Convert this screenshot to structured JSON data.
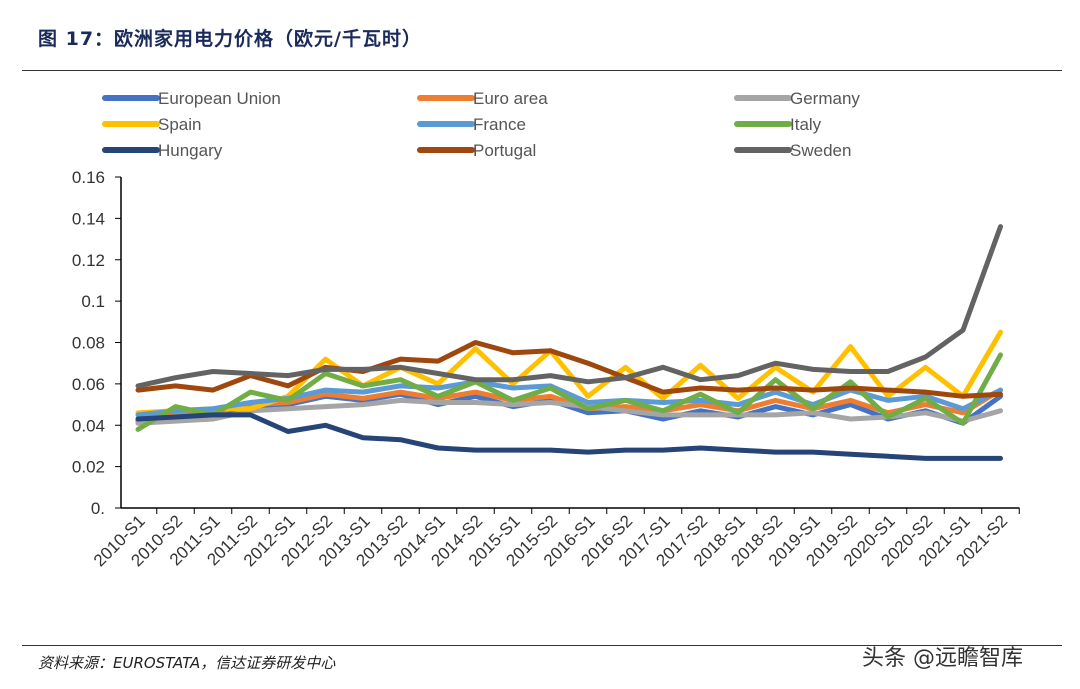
{
  "title": "图 17：欧洲家用电力价格（欧元/千瓦时）",
  "source": "资料来源：EUROSTATA，信达证券研发中心",
  "watermark": "头条 @远瞻智库",
  "chart_data": {
    "type": "line",
    "title": "",
    "xlabel": "",
    "ylabel": "",
    "ylim": [
      0,
      0.16
    ],
    "yticks": [
      "0.",
      "0.02",
      "0.04",
      "0.06",
      "0.08",
      "0.1",
      "0.12",
      "0.14",
      "0.16"
    ],
    "grid": false,
    "legend": "top",
    "categories": [
      "2010-S1",
      "2010-S2",
      "2011-S1",
      "2011-S2",
      "2012-S1",
      "2012-S2",
      "2013-S1",
      "2013-S2",
      "2014-S1",
      "2014-S2",
      "2015-S1",
      "2015-S2",
      "2016-S1",
      "2016-S2",
      "2017-S1",
      "2017-S2",
      "2018-S1",
      "2018-S2",
      "2019-S1",
      "2019-S2",
      "2020-S1",
      "2020-S2",
      "2021-S1",
      "2021-S2"
    ],
    "series": [
      {
        "name": "European Union",
        "color": "#4472C4",
        "values": [
          0.042,
          0.044,
          0.045,
          0.049,
          0.05,
          0.054,
          0.052,
          0.055,
          0.05,
          0.054,
          0.049,
          0.052,
          0.046,
          0.047,
          0.043,
          0.047,
          0.044,
          0.049,
          0.045,
          0.05,
          0.043,
          0.047,
          0.041,
          0.054
        ]
      },
      {
        "name": "Euro area",
        "color": "#ED7D31",
        "values": [
          0.043,
          0.045,
          0.046,
          0.05,
          0.051,
          0.055,
          0.053,
          0.056,
          0.053,
          0.056,
          0.052,
          0.054,
          0.048,
          0.049,
          0.047,
          0.05,
          0.047,
          0.052,
          0.048,
          0.052,
          0.046,
          0.05,
          0.046,
          0.057
        ]
      },
      {
        "name": "Germany",
        "color": "#A5A5A5",
        "values": [
          0.041,
          0.042,
          0.043,
          0.047,
          0.048,
          0.049,
          0.05,
          0.052,
          0.051,
          0.051,
          0.05,
          0.051,
          0.049,
          0.047,
          0.045,
          0.045,
          0.045,
          0.045,
          0.046,
          0.043,
          0.044,
          0.046,
          0.042,
          0.047
        ]
      },
      {
        "name": "Spain",
        "color": "#FFC000",
        "values": [
          0.046,
          0.047,
          0.048,
          0.048,
          0.054,
          0.072,
          0.059,
          0.068,
          0.06,
          0.077,
          0.06,
          0.076,
          0.054,
          0.068,
          0.053,
          0.069,
          0.053,
          0.068,
          0.056,
          0.078,
          0.054,
          0.068,
          0.054,
          0.085
        ]
      },
      {
        "name": "France",
        "color": "#5B9BD5",
        "values": [
          0.045,
          0.047,
          0.048,
          0.051,
          0.053,
          0.057,
          0.056,
          0.059,
          0.058,
          0.061,
          0.058,
          0.059,
          0.051,
          0.052,
          0.051,
          0.052,
          0.05,
          0.056,
          0.05,
          0.057,
          0.052,
          0.054,
          0.048,
          0.057
        ]
      },
      {
        "name": "Italy",
        "color": "#70AD47",
        "values": [
          0.038,
          0.049,
          0.045,
          0.056,
          0.052,
          0.065,
          0.059,
          0.062,
          0.054,
          0.061,
          0.052,
          0.058,
          0.048,
          0.052,
          0.047,
          0.055,
          0.046,
          0.062,
          0.048,
          0.061,
          0.044,
          0.053,
          0.041,
          0.074
        ]
      },
      {
        "name": "Hungary",
        "color": "#264478",
        "values": [
          0.043,
          0.044,
          0.045,
          0.045,
          0.037,
          0.04,
          0.034,
          0.033,
          0.029,
          0.028,
          0.028,
          0.028,
          0.027,
          0.028,
          0.028,
          0.029,
          0.028,
          0.027,
          0.027,
          0.026,
          0.025,
          0.024,
          0.024,
          0.024
        ]
      },
      {
        "name": "Portugal",
        "color": "#9E480E",
        "values": [
          0.057,
          0.059,
          0.057,
          0.064,
          0.059,
          0.068,
          0.066,
          0.072,
          0.071,
          0.08,
          0.075,
          0.076,
          0.07,
          0.063,
          0.056,
          0.058,
          0.057,
          0.058,
          0.057,
          0.058,
          0.057,
          0.056,
          0.054,
          0.055
        ]
      },
      {
        "name": "Sweden",
        "color": "#636363",
        "values": [
          0.059,
          0.063,
          0.066,
          0.065,
          0.064,
          0.067,
          0.067,
          0.068,
          0.065,
          0.062,
          0.062,
          0.064,
          0.061,
          0.063,
          0.068,
          0.062,
          0.064,
          0.07,
          0.067,
          0.066,
          0.066,
          0.073,
          0.086,
          0.136
        ]
      }
    ]
  }
}
